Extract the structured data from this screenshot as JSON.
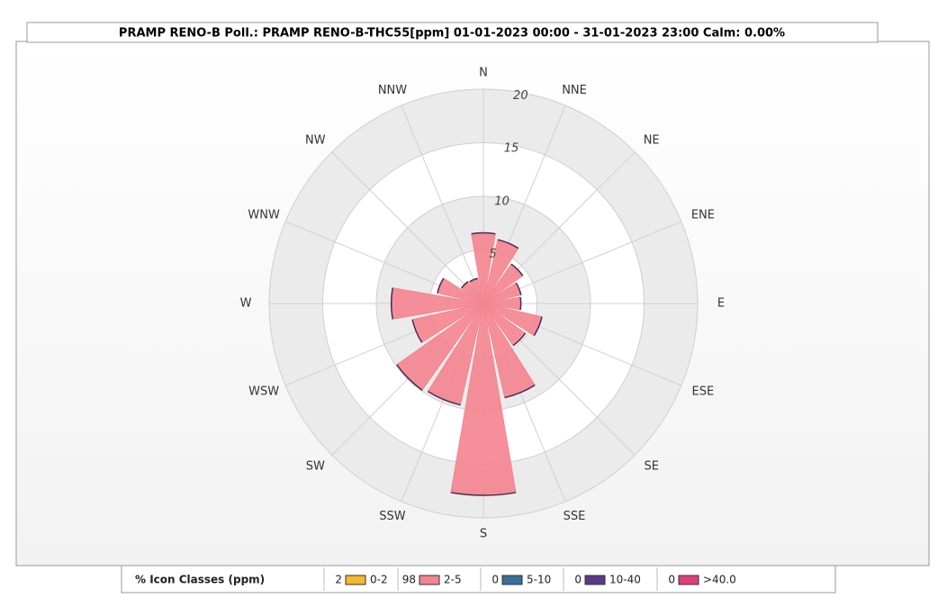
{
  "chart_data": {
    "type": "windrose",
    "title": "PRAMP RENO-B Poll.: PRAMP RENO-B-THC55[ppm] 01-01-2023 00:00 - 31-01-2023 23:00 Calm: 0.00%",
    "categories": [
      "N",
      "NNE",
      "NE",
      "ENE",
      "E",
      "ESE",
      "SE",
      "SSE",
      "S",
      "SSW",
      "SW",
      "WSW",
      "W",
      "WNW",
      "NW",
      "NNW"
    ],
    "values": [
      6.6,
      6.1,
      4.5,
      3.6,
      3.5,
      5.6,
      4.8,
      9.0,
      17.9,
      9.7,
      9.9,
      6.8,
      8.6,
      4.4,
      2.5,
      2.4
    ],
    "color": "#f4848f",
    "stroke": "#4a2a5a",
    "rlim": [
      0,
      20
    ],
    "rticks": [
      5,
      10,
      15,
      20
    ],
    "legend": {
      "header": "% Icon  Classes (ppm)",
      "classes": [
        {
          "percent": 2,
          "color": "#f5b82e",
          "label": "0-2"
        },
        {
          "percent": 98,
          "color": "#f4848f",
          "label": "2-5"
        },
        {
          "percent": 0,
          "color": "#3a6e9a",
          "label": "5-10"
        },
        {
          "percent": 0,
          "color": "#5a3a8a",
          "label": "10-40"
        },
        {
          "percent": 0,
          "color": "#e0407a",
          "label": ">40.0"
        }
      ]
    }
  }
}
